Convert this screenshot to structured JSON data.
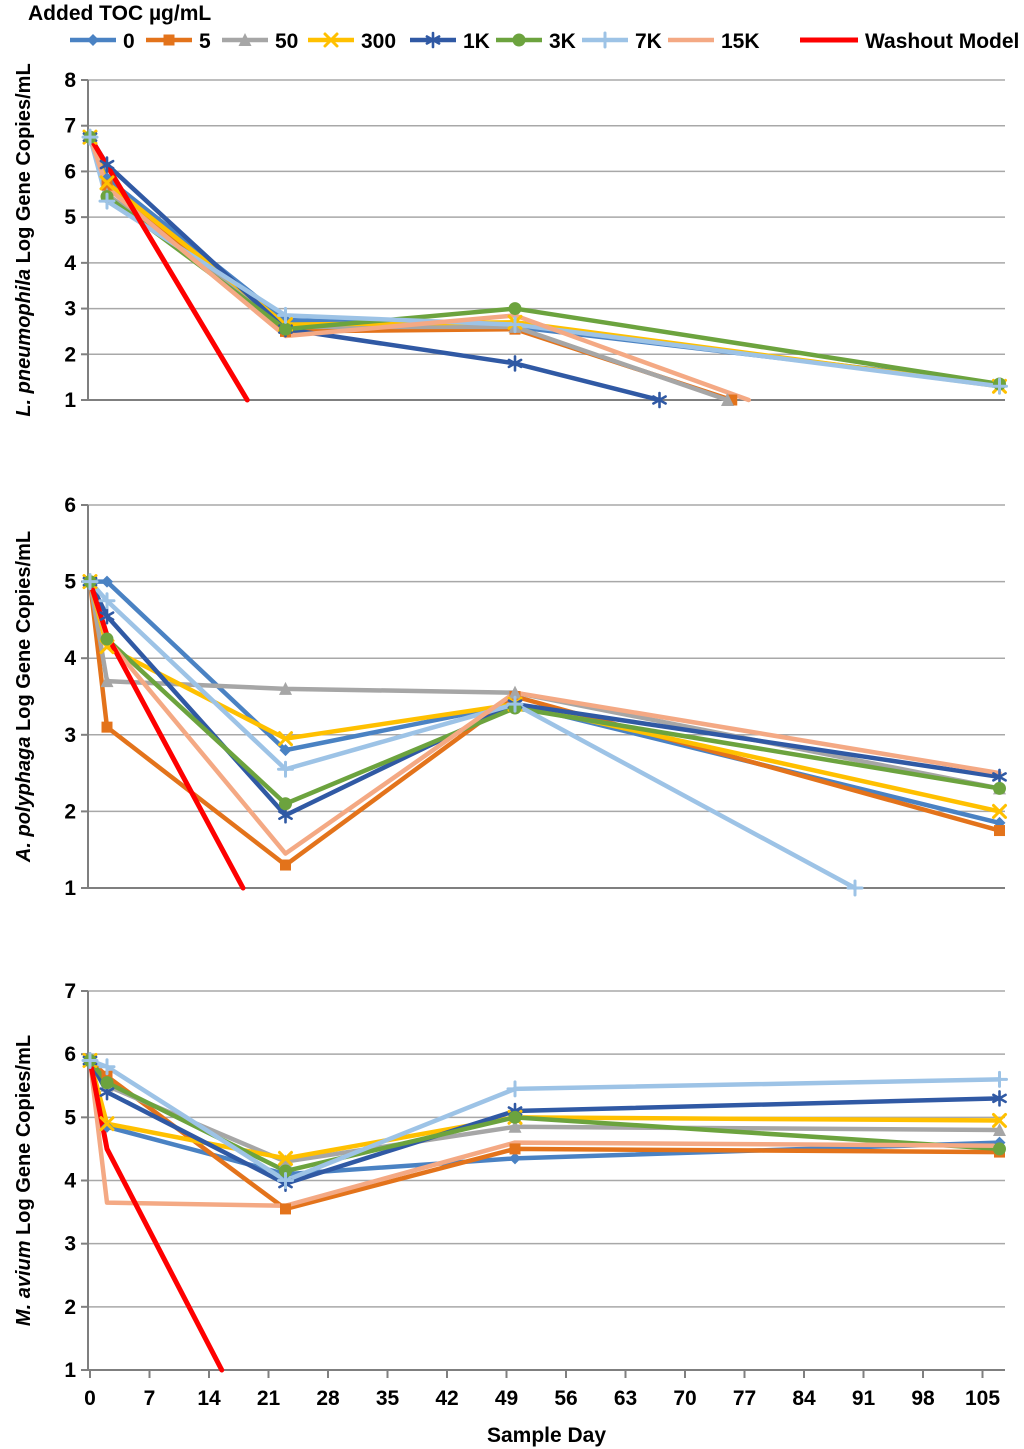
{
  "legend": {
    "title": "Added TOC µg/mL",
    "entries": [
      {
        "label": "0",
        "color": "#4A82C3",
        "marker": "diamond"
      },
      {
        "label": "5",
        "color": "#E3731B",
        "marker": "square"
      },
      {
        "label": "50",
        "color": "#A6A6A6",
        "marker": "triangle"
      },
      {
        "label": "300",
        "color": "#FFC000",
        "marker": "x"
      },
      {
        "label": "1K",
        "color": "#3059A4",
        "marker": "asterisk"
      },
      {
        "label": "3K",
        "color": "#6CA33E",
        "marker": "circle"
      },
      {
        "label": "7K",
        "color": "#9DC3E6",
        "marker": "plus"
      },
      {
        "label": "15K",
        "color": "#F4A984",
        "marker": "none"
      },
      {
        "label": "Washout Model",
        "color": "#FE0000",
        "marker": "none"
      }
    ]
  },
  "xaxis": {
    "title": "Sample Day",
    "ticks": [
      0,
      7,
      14,
      21,
      28,
      35,
      42,
      49,
      56,
      63,
      70,
      77,
      84,
      91,
      98,
      105
    ]
  },
  "chart_data": [
    {
      "type": "line",
      "ylabel_italic": "L. pneumophila",
      "ylabel_rest": " Log Gene Copies/mL",
      "ymin": 1,
      "ymax": 8,
      "yticks": [
        1,
        2,
        3,
        4,
        5,
        6,
        7,
        8
      ],
      "xlim": [
        0,
        107.6
      ],
      "grid": true,
      "series": [
        {
          "name": "0",
          "points": [
            [
              0,
              6.75
            ],
            [
              2,
              5.85
            ],
            [
              23,
              2.75
            ],
            [
              50,
              2.6
            ],
            [
              107,
              1.35
            ]
          ]
        },
        {
          "name": "5",
          "points": [
            [
              0,
              6.75
            ],
            [
              2,
              5.7
            ],
            [
              23,
              2.5
            ],
            [
              50,
              2.55
            ],
            [
              75.5,
              1.0
            ]
          ]
        },
        {
          "name": "50",
          "points": [
            [
              0,
              6.75
            ],
            [
              2,
              5.5
            ],
            [
              23,
              2.6
            ],
            [
              50,
              2.6
            ],
            [
              75,
              1.0
            ]
          ]
        },
        {
          "name": "300",
          "points": [
            [
              0,
              6.75
            ],
            [
              2,
              5.75
            ],
            [
              23,
              2.65
            ],
            [
              50,
              2.7
            ],
            [
              107,
              1.3
            ]
          ]
        },
        {
          "name": "1K",
          "points": [
            [
              0,
              6.75
            ],
            [
              2,
              6.15
            ],
            [
              23,
              2.55
            ],
            [
              50,
              1.8
            ],
            [
              67,
              1.0
            ]
          ]
        },
        {
          "name": "3K",
          "points": [
            [
              0,
              6.75
            ],
            [
              2,
              5.45
            ],
            [
              23,
              2.55
            ],
            [
              50,
              3.0
            ],
            [
              107,
              1.35
            ]
          ]
        },
        {
          "name": "7K",
          "points": [
            [
              0,
              6.75
            ],
            [
              2,
              5.35
            ],
            [
              23,
              2.85
            ],
            [
              50,
              2.65
            ],
            [
              107,
              1.3
            ]
          ]
        },
        {
          "name": "15K",
          "points": [
            [
              0,
              6.75
            ],
            [
              2,
              5.65
            ],
            [
              23,
              2.4
            ],
            [
              50,
              2.85
            ],
            [
              77.5,
              1.0
            ]
          ]
        },
        {
          "name": "Washout Model",
          "points": [
            [
              0,
              6.75
            ],
            [
              18.5,
              1.0
            ]
          ]
        }
      ]
    },
    {
      "type": "line",
      "ylabel_italic": "A. polyphaga",
      "ylabel_rest": " Log Gene Copies/mL",
      "ymin": 1,
      "ymax": 6,
      "yticks": [
        1,
        2,
        3,
        4,
        5,
        6
      ],
      "xlim": [
        0,
        107.6
      ],
      "grid": true,
      "series": [
        {
          "name": "0",
          "points": [
            [
              0,
              5.0
            ],
            [
              2,
              5.0
            ],
            [
              23,
              2.8
            ],
            [
              50,
              3.4
            ],
            [
              107,
              1.85
            ]
          ]
        },
        {
          "name": "5",
          "points": [
            [
              0,
              5.0
            ],
            [
              2,
              3.1
            ],
            [
              23,
              1.3
            ],
            [
              50,
              3.5
            ],
            [
              107,
              1.75
            ]
          ]
        },
        {
          "name": "50",
          "points": [
            [
              0,
              5.0
            ],
            [
              2,
              3.7
            ],
            [
              23,
              3.6
            ],
            [
              50,
              3.55
            ],
            [
              107,
              2.3
            ]
          ]
        },
        {
          "name": "300",
          "points": [
            [
              0,
              5.0
            ],
            [
              2,
              4.15
            ],
            [
              23,
              2.95
            ],
            [
              50,
              3.4
            ],
            [
              107,
              2.0
            ]
          ]
        },
        {
          "name": "1K",
          "points": [
            [
              0,
              5.0
            ],
            [
              2,
              4.55
            ],
            [
              23,
              1.95
            ],
            [
              50,
              3.4
            ],
            [
              107,
              2.45
            ]
          ]
        },
        {
          "name": "3K",
          "points": [
            [
              0,
              5.0
            ],
            [
              2,
              4.25
            ],
            [
              23,
              2.1
            ],
            [
              50,
              3.35
            ],
            [
              107,
              2.3
            ]
          ]
        },
        {
          "name": "7K",
          "points": [
            [
              0,
              5.0
            ],
            [
              2,
              4.75
            ],
            [
              23,
              2.55
            ],
            [
              50,
              3.4
            ],
            [
              90,
              1.0
            ]
          ]
        },
        {
          "name": "15K",
          "points": [
            [
              0,
              5.0
            ],
            [
              2,
              4.25
            ],
            [
              23,
              1.45
            ],
            [
              50,
              3.55
            ],
            [
              107,
              2.5
            ]
          ]
        },
        {
          "name": "Washout Model",
          "points": [
            [
              0,
              5.0
            ],
            [
              2,
              4.3
            ],
            [
              18,
              1.0
            ]
          ]
        }
      ]
    },
    {
      "type": "line",
      "ylabel_italic": "M. avium",
      "ylabel_rest": " Log Gene Copies/mL",
      "ymin": 1,
      "ymax": 7,
      "yticks": [
        1,
        2,
        3,
        4,
        5,
        6,
        7
      ],
      "xlim": [
        0,
        107.6
      ],
      "grid": true,
      "series": [
        {
          "name": "0",
          "points": [
            [
              0,
              5.9
            ],
            [
              2,
              4.85
            ],
            [
              23,
              4.1
            ],
            [
              50,
              4.35
            ],
            [
              107,
              4.6
            ]
          ]
        },
        {
          "name": "5",
          "points": [
            [
              0,
              5.9
            ],
            [
              2,
              5.65
            ],
            [
              23,
              3.55
            ],
            [
              50,
              4.5
            ],
            [
              107,
              4.45
            ]
          ]
        },
        {
          "name": "50",
          "points": [
            [
              0,
              5.9
            ],
            [
              2,
              5.5
            ],
            [
              23,
              4.3
            ],
            [
              50,
              4.85
            ],
            [
              107,
              4.8
            ]
          ]
        },
        {
          "name": "300",
          "points": [
            [
              0,
              5.9
            ],
            [
              2,
              4.9
            ],
            [
              23,
              4.35
            ],
            [
              50,
              5.0
            ],
            [
              107,
              4.95
            ]
          ]
        },
        {
          "name": "1K",
          "points": [
            [
              0,
              5.9
            ],
            [
              2,
              5.4
            ],
            [
              23,
              3.95
            ],
            [
              50,
              5.1
            ],
            [
              107,
              5.3
            ]
          ]
        },
        {
          "name": "3K",
          "points": [
            [
              0,
              5.9
            ],
            [
              2,
              5.55
            ],
            [
              23,
              4.15
            ],
            [
              50,
              5.0
            ],
            [
              107,
              4.5
            ]
          ]
        },
        {
          "name": "7K",
          "points": [
            [
              0,
              5.9
            ],
            [
              2,
              5.8
            ],
            [
              23,
              4.0
            ],
            [
              50,
              5.45
            ],
            [
              107,
              5.6
            ]
          ]
        },
        {
          "name": "15K",
          "points": [
            [
              0,
              5.9
            ],
            [
              2,
              3.65
            ],
            [
              23,
              3.6
            ],
            [
              50,
              4.6
            ],
            [
              107,
              4.55
            ]
          ]
        },
        {
          "name": "Washout Model",
          "points": [
            [
              0,
              5.9
            ],
            [
              2,
              4.5
            ],
            [
              15.5,
              1.0
            ]
          ]
        }
      ]
    }
  ]
}
